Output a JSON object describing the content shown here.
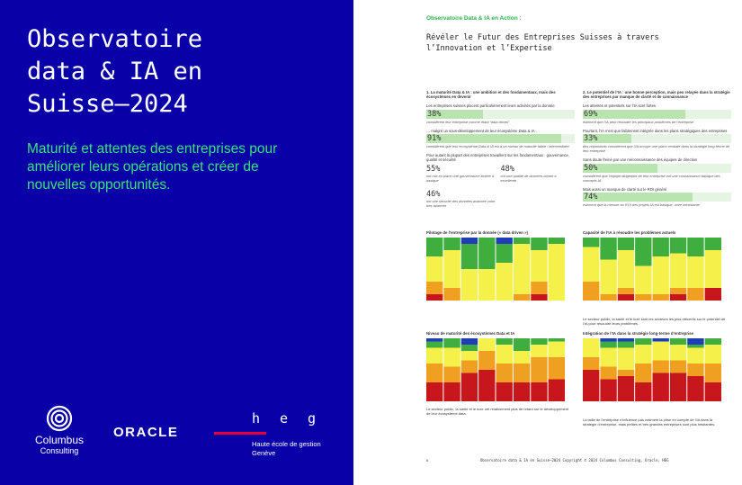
{
  "left_panel": {
    "title_lines": [
      "Observatoire",
      "data & IA en",
      "Suisse—2024"
    ],
    "subtitle": "Maturité et attentes des entreprises pour améliorer leurs opérations et créer de nouvelles opportunités.",
    "logos": {
      "columbus": {
        "line1": "Columbus",
        "line2": "Consulting"
      },
      "oracle": "ORACLE",
      "heg": {
        "mark": "heg",
        "line1": "Haute école de gestion",
        "line2": "Genève"
      }
    }
  },
  "doc": {
    "kicker": "Observatoire Data & IA en Action :",
    "title_lines": [
      "Révéler le Futur des Entreprises Suisses à travers",
      "l’Innovation et l’Expertise"
    ],
    "left_col": {
      "heading": "1. La maturité Data & IA : une ambition et des fondamentaux, mais des écosystèmes en devenir",
      "text1": "Les entreprises suisses placent particulièrement leurs activités par la donnée",
      "stat1": "38%",
      "cap1": "considèrent leur entreprise comme étant “data driven”",
      "text2": "… malgré un sous-développement de leur écosystème Data & IA",
      "stat2": "91%",
      "cap2": "considèrent que leur écosystème Data & IA est à un niveau de maturité faible / intermédiaire",
      "text3": "Pour autant la plupart des entreprises travaillent sur les fondamentaux : gouvernance, qualité et sécurité",
      "stats": [
        {
          "value": "55%",
          "caption": "ont mis en place une gouvernance limitée à basique"
        },
        {
          "value": "48%",
          "caption": "ont une qualité de données bonne à excellente"
        },
        {
          "value": "46%",
          "caption": "ont une sécurité des données avancée voire très avancée"
        }
      ]
    },
    "right_col": {
      "heading": "2. Le potentiel de l’IA : une bonne perception, mais peu relayée dans la stratégie des entreprises par manque de clarté et de connaissance",
      "text1": "Les attentes et potentiels sur l’IA sont fortes",
      "stat1": "69%",
      "cap1": "estiment que l’IA peut résoudre les principaux problèmes de l’entreprise",
      "text2": "Pourtant, l’IA n’est que faiblement intégrée dans les plans stratégiques des entreprises",
      "stat2": "33%",
      "cap2": "des répondants considèrent que l’IA occupe une place centrale dans la stratégie long-terme de leur entreprise",
      "text3": "Sans doute freiné par une méconnaissance des équipes de direction",
      "stat3": "50%",
      "cap3": "considèrent que l’équipe dirigeante de leur entreprise ont une connaissance basique des concepts IA",
      "text4": "Mais aussi un manque de clarté sur le ROI généré",
      "stat4": "74%",
      "cap4": "estiment que la mesure du ROI des projets IA est basique, voire inexistante"
    },
    "charts": {
      "c1_title": "Pilotage de l’entreprise par la donnée (« data driven »)",
      "c2_title": "Capacité de l’IA à résoudre les problèmes actuels",
      "c3_title": "Niveau de maturité des écosystèmes Data et IA",
      "c4_title": "Intégration de l’IA dans la stratégie long-terme d’entreprise",
      "c3_note": "Le secteur public, la santé et le luxe ont relativement plus de retard sur le développement de leur écosystème data.",
      "c2_note": "Le secteur public, la santé et le luxe sont les secteurs les plus réticents sur le potentiel de l’IA pour résoudre leurs problèmes.",
      "c4_note": "La taille de l’entreprise n’influence pas vraiment la prise en compte de l’IA dans la stratégie d’entreprise, mais petites et très grandes entreprises sont plus hésitantes."
    },
    "footer": {
      "page": "6",
      "text": "Observatoire data & IA en Suisse—2024  Copyright © 2024 Columbus Consulting, Oracle, HEG"
    }
  },
  "colors": {
    "brand_blue": "#0a00a8",
    "brand_green": "#3ee07a",
    "chart_blue": "#1f3db5",
    "chart_green": "#3fae3f",
    "chart_yellow": "#f5f04a",
    "chart_orange": "#f0a020",
    "chart_red": "#c8161d"
  }
}
